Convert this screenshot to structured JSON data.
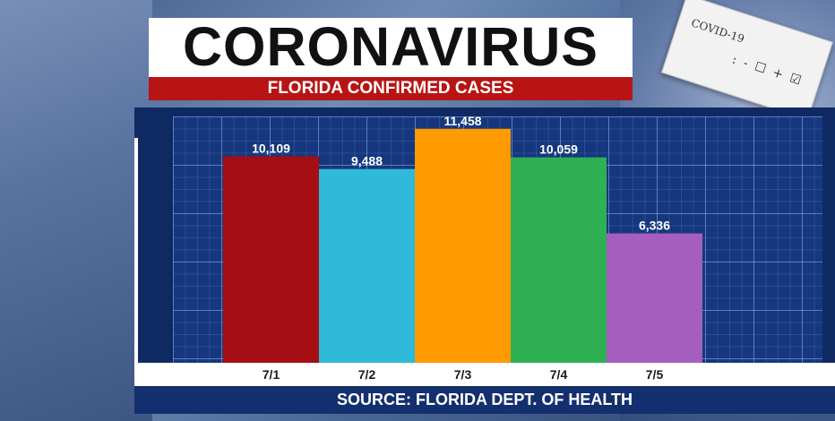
{
  "header": {
    "title": "CORONAVIRUS",
    "subtitle": "FLORIDA CONFIRMED CASES"
  },
  "background": {
    "card_line1": "COVID-19",
    "card_line2": ": - ☐ + ☑"
  },
  "footer": {
    "source": "SOURCE: FLORIDA DEPT. OF HEALTH"
  },
  "colors": {
    "title_bar": "#b81414",
    "panel": "#0f2a63",
    "bars": [
      "#a50e12",
      "#2ebad8",
      "#ff9a00",
      "#2fb055",
      "#a55ebd"
    ]
  },
  "chart_data": {
    "type": "bar",
    "title": "FLORIDA CONFIRMED CASES",
    "categories": [
      "7/1",
      "7/2",
      "7/3",
      "7/4",
      "7/5"
    ],
    "values": [
      10109,
      9488,
      11458,
      10059,
      6336
    ],
    "value_labels": [
      "10,109",
      "9,488",
      "11,458",
      "10,059",
      "6,336"
    ],
    "ylim": [
      0,
      11800
    ],
    "grid": true,
    "legend": "none"
  }
}
